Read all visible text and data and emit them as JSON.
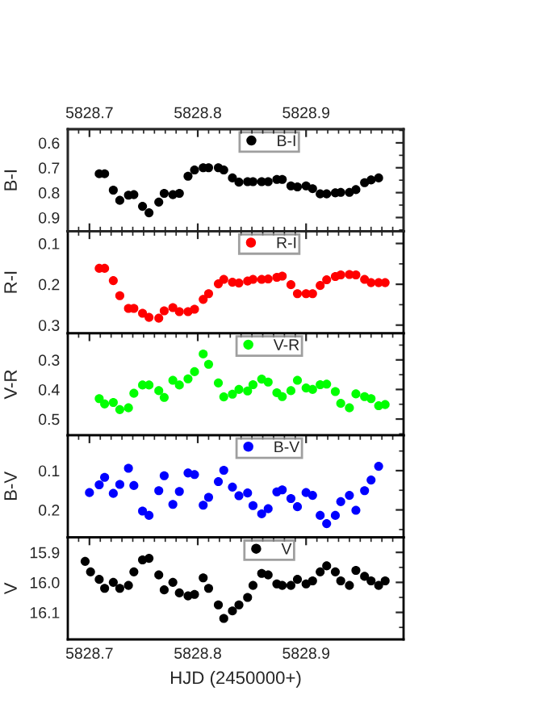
{
  "chart_data": [
    {
      "type": "scatter",
      "ylabel": "B-I",
      "xlim": [
        5828.68,
        5828.99
      ],
      "xticks": [
        5828.7,
        5828.8,
        5828.9
      ],
      "x2lim": [
        5828.68,
        5828.99
      ],
      "x2ticks": [
        5828.7,
        5828.8,
        5828.9
      ],
      "tick_labels": "y",
      "ylim": [
        0.955,
        0.545
      ],
      "yticks": [
        0.6,
        0.7,
        0.8,
        0.9
      ],
      "legend": "top",
      "marker": "circle",
      "x": [
        5828.709,
        5828.714,
        5828.722,
        5828.728,
        5828.736,
        5828.741,
        5828.749,
        5828.755,
        5828.764,
        5828.769,
        5828.777,
        5828.783,
        5828.791,
        5828.797,
        5828.805,
        5828.81,
        5828.819,
        5828.824,
        5828.832,
        5828.838,
        5828.846,
        5828.851,
        5828.859,
        5828.865,
        5828.873,
        5828.878,
        5828.886,
        5828.892,
        5828.9,
        5828.906,
        5828.913,
        5828.919,
        5828.927,
        5828.932,
        5828.94,
        5828.946,
        5828.954,
        5828.96,
        5828.967
      ],
      "series": [
        {
          "name": "B-I",
          "color": "#000000",
          "values": [
            0.724,
            0.724,
            0.79,
            0.831,
            0.81,
            0.808,
            0.855,
            0.881,
            0.838,
            0.803,
            0.808,
            0.803,
            0.734,
            0.709,
            0.7,
            0.7,
            0.7,
            0.709,
            0.741,
            0.758,
            0.756,
            0.756,
            0.756,
            0.756,
            0.747,
            0.747,
            0.773,
            0.777,
            0.773,
            0.784,
            0.805,
            0.805,
            0.801,
            0.799,
            0.799,
            0.788,
            0.76,
            0.749,
            0.741
          ]
        }
      ]
    },
    {
      "type": "scatter",
      "ylabel": "R-I",
      "xlim": [
        5828.68,
        5828.99
      ],
      "xticks": [
        5828.7,
        5828.8,
        5828.9
      ],
      "tick_labels": "y",
      "ylim": [
        0.32,
        0.07
      ],
      "yticks": [
        0.1,
        0.2,
        0.3
      ],
      "legend": "top",
      "marker": "circle",
      "x": [
        5828.709,
        5828.714,
        5828.722,
        5828.728,
        5828.736,
        5828.741,
        5828.749,
        5828.755,
        5828.764,
        5828.769,
        5828.777,
        5828.783,
        5828.791,
        5828.797,
        5828.805,
        5828.81,
        5828.819,
        5828.824,
        5828.832,
        5828.838,
        5828.846,
        5828.851,
        5828.859,
        5828.865,
        5828.873,
        5828.878,
        5828.886,
        5828.892,
        5828.9,
        5828.906,
        5828.913,
        5828.919,
        5828.927,
        5828.932,
        5828.94,
        5828.946,
        5828.954,
        5828.96,
        5828.967,
        5828.973
      ],
      "series": [
        {
          "name": "R-I",
          "color": "#ff0000",
          "values": [
            0.161,
            0.161,
            0.191,
            0.228,
            0.259,
            0.259,
            0.271,
            0.281,
            0.283,
            0.265,
            0.257,
            0.267,
            0.267,
            0.261,
            0.237,
            0.223,
            0.199,
            0.188,
            0.195,
            0.197,
            0.192,
            0.188,
            0.188,
            0.187,
            0.183,
            0.18,
            0.201,
            0.223,
            0.223,
            0.223,
            0.203,
            0.189,
            0.181,
            0.177,
            0.176,
            0.177,
            0.188,
            0.196,
            0.196,
            0.196
          ]
        }
      ]
    },
    {
      "type": "scatter",
      "ylabel": "V-R",
      "xlim": [
        5828.68,
        5828.99
      ],
      "xticks": [
        5828.7,
        5828.8,
        5828.9
      ],
      "tick_labels": "y",
      "ylim": [
        0.555,
        0.21
      ],
      "yticks": [
        0.3,
        0.4,
        0.5
      ],
      "legend": "top",
      "marker": "circle",
      "x": [
        5828.709,
        5828.714,
        5828.722,
        5828.728,
        5828.736,
        5828.741,
        5828.749,
        5828.755,
        5828.764,
        5828.769,
        5828.777,
        5828.783,
        5828.791,
        5828.797,
        5828.805,
        5828.81,
        5828.819,
        5828.824,
        5828.832,
        5828.838,
        5828.846,
        5828.851,
        5828.859,
        5828.865,
        5828.873,
        5828.878,
        5828.886,
        5828.892,
        5828.9,
        5828.906,
        5828.913,
        5828.919,
        5828.927,
        5828.932,
        5828.94,
        5828.946,
        5828.954,
        5828.96,
        5828.967,
        5828.973
      ],
      "series": [
        {
          "name": "V-R",
          "color": "#00ff00",
          "values": [
            0.431,
            0.449,
            0.444,
            0.468,
            0.462,
            0.413,
            0.385,
            0.385,
            0.404,
            0.427,
            0.369,
            0.385,
            0.364,
            0.34,
            0.28,
            0.315,
            0.378,
            0.425,
            0.416,
            0.4,
            0.405,
            0.384,
            0.365,
            0.375,
            0.411,
            0.424,
            0.404,
            0.369,
            0.395,
            0.4,
            0.384,
            0.382,
            0.407,
            0.447,
            0.462,
            0.415,
            0.424,
            0.431,
            0.455,
            0.451
          ]
        }
      ]
    },
    {
      "type": "scatter",
      "ylabel": "B-V",
      "xlim": [
        5828.68,
        5828.99
      ],
      "xticks": [
        5828.7,
        5828.8,
        5828.9
      ],
      "tick_labels": "y",
      "ylim": [
        0.27,
        0.01
      ],
      "yticks": [
        0.1,
        0.2
      ],
      "legend": "top",
      "marker": "circle",
      "x": [
        5828.7,
        5828.709,
        5828.714,
        5828.722,
        5828.728,
        5828.736,
        5828.741,
        5828.749,
        5828.755,
        5828.764,
        5828.769,
        5828.777,
        5828.783,
        5828.791,
        5828.797,
        5828.805,
        5828.81,
        5828.819,
        5828.824,
        5828.832,
        5828.838,
        5828.846,
        5828.851,
        5828.859,
        5828.865,
        5828.873,
        5828.878,
        5828.886,
        5828.892,
        5828.9,
        5828.906,
        5828.913,
        5828.919,
        5828.927,
        5828.932,
        5828.94,
        5828.946,
        5828.954,
        5828.96,
        5828.967
      ],
      "series": [
        {
          "name": "B-V",
          "color": "#0000ff",
          "values": [
            0.156,
            0.136,
            0.117,
            0.158,
            0.135,
            0.094,
            0.138,
            0.203,
            0.214,
            0.151,
            0.113,
            0.186,
            0.153,
            0.106,
            0.11,
            0.188,
            0.168,
            0.128,
            0.099,
            0.142,
            0.164,
            0.157,
            0.189,
            0.21,
            0.197,
            0.154,
            0.149,
            0.171,
            0.192,
            0.156,
            0.163,
            0.214,
            0.235,
            0.214,
            0.179,
            0.163,
            0.201,
            0.151,
            0.124,
            0.089
          ]
        }
      ]
    },
    {
      "type": "scatter",
      "ylabel": "V",
      "xlabel": "HJD (2450000+)",
      "xlim": [
        5828.68,
        5828.99
      ],
      "xticks": [
        5828.7,
        5828.8,
        5828.9
      ],
      "ylim": [
        16.19,
        15.85
      ],
      "yticks": [
        15.9,
        {
          "value": 16.0,
          "label": "16.0"
        },
        16.1
      ],
      "legend": "top",
      "marker": "circle",
      "x": [
        5828.696,
        5828.701,
        5828.709,
        5828.714,
        5828.722,
        5828.728,
        5828.736,
        5828.741,
        5828.749,
        5828.755,
        5828.764,
        5828.769,
        5828.777,
        5828.783,
        5828.791,
        5828.797,
        5828.805,
        5828.81,
        5828.819,
        5828.824,
        5828.832,
        5828.838,
        5828.846,
        5828.851,
        5828.859,
        5828.865,
        5828.873,
        5828.878,
        5828.886,
        5828.892,
        5828.9,
        5828.906,
        5828.913,
        5828.919,
        5828.927,
        5828.932,
        5828.94,
        5828.946,
        5828.954,
        5828.96,
        5828.967,
        5828.973
      ],
      "series": [
        {
          "name": "V",
          "color": "#000000",
          "values": [
            15.93,
            15.965,
            15.99,
            16.02,
            16.0,
            16.02,
            16.01,
            15.965,
            15.925,
            15.92,
            15.975,
            16.025,
            16.0,
            16.035,
            16.045,
            16.04,
            15.985,
            16.02,
            16.075,
            16.12,
            16.095,
            16.075,
            16.05,
            16.01,
            15.97,
            15.975,
            16.005,
            16.01,
            16.01,
            15.99,
            16.005,
            15.995,
            15.965,
            15.945,
            15.965,
            15.995,
            16.01,
            15.96,
            15.98,
            15.995,
            16.01,
            15.995
          ]
        }
      ]
    }
  ]
}
